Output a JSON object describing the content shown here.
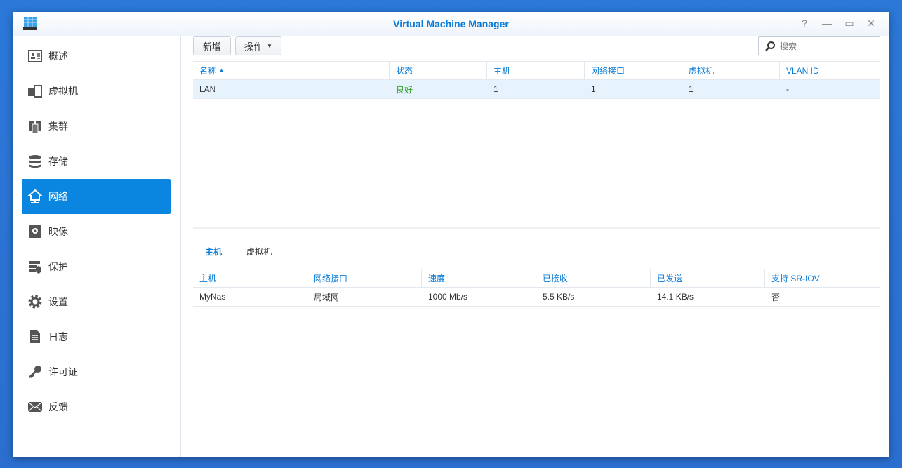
{
  "window": {
    "title": "Virtual Machine Manager"
  },
  "sidebar": {
    "items": [
      {
        "label": "概述",
        "icon": "overview-icon"
      },
      {
        "label": "虚拟机",
        "icon": "virtual-machine-icon"
      },
      {
        "label": "集群",
        "icon": "cluster-icon"
      },
      {
        "label": "存储",
        "icon": "storage-icon"
      },
      {
        "label": "网络",
        "icon": "network-icon",
        "selected": true
      },
      {
        "label": "映像",
        "icon": "image-icon"
      },
      {
        "label": "保护",
        "icon": "protection-icon"
      },
      {
        "label": "设置",
        "icon": "gear-icon"
      },
      {
        "label": "日志",
        "icon": "log-icon"
      },
      {
        "label": "许可证",
        "icon": "key-icon"
      },
      {
        "label": "反馈",
        "icon": "mail-icon"
      }
    ]
  },
  "toolbar": {
    "add_label": "新增",
    "action_label": "操作",
    "search_placeholder": "搜索"
  },
  "network_table": {
    "headers": [
      "名称",
      "状态",
      "主机",
      "网络接口",
      "虚拟机",
      "VLAN ID"
    ],
    "rows": [
      [
        "LAN",
        "良好",
        "1",
        "1",
        "1",
        "-"
      ]
    ]
  },
  "tabs": [
    "主机",
    "虚拟机"
  ],
  "host_table": {
    "headers": [
      "主机",
      "网络接口",
      "速度",
      "已接收",
      "已发送",
      "支持 SR-IOV"
    ],
    "rows": [
      [
        "MyNas",
        "局域网",
        "1000 Mb/s",
        "5.5 KB/s",
        "14.1 KB/s",
        "否"
      ]
    ]
  },
  "colors": {
    "accent": "#0a86e0",
    "status_good": "#2e9e1f"
  }
}
